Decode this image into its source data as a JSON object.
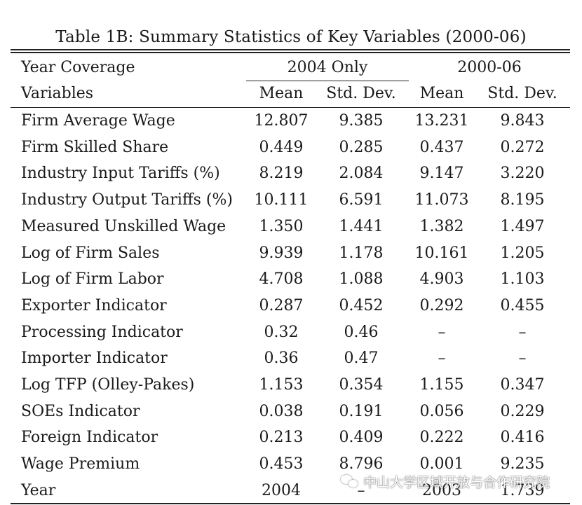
{
  "caption": "Table 1B: Summary Statistics of Key Variables (2000-06)",
  "header": {
    "row1_label": "Year Coverage",
    "group1": "2004 Only",
    "group2": "2000-06",
    "row2_label": "Variables",
    "col_mean_1": "Mean",
    "col_sd_1": "Std. Dev.",
    "col_mean_2": "Mean",
    "col_sd_2": "Std. Dev."
  },
  "rows": [
    {
      "variable": "Firm Average Wage",
      "m1": "12.807",
      "s1": "9.385",
      "m2": "13.231",
      "s2": "9.843"
    },
    {
      "variable": "Firm Skilled Share",
      "m1": "0.449",
      "s1": "0.285",
      "m2": "0.437",
      "s2": "0.272"
    },
    {
      "variable": "Industry Input Tariffs (%)",
      "m1": "8.219",
      "s1": "2.084",
      "m2": "9.147",
      "s2": "3.220"
    },
    {
      "variable": "Industry Output Tariffs (%)",
      "m1": "10.111",
      "s1": "6.591",
      "m2": "11.073",
      "s2": "8.195"
    },
    {
      "variable": "Measured Unskilled Wage",
      "m1": "1.350",
      "s1": "1.441",
      "m2": "1.382",
      "s2": "1.497"
    },
    {
      "variable": "Log of Firm Sales",
      "m1": "9.939",
      "s1": "1.178",
      "m2": "10.161",
      "s2": "1.205"
    },
    {
      "variable": "Log of Firm Labor",
      "m1": "4.708",
      "s1": "1.088",
      "m2": "4.903",
      "s2": "1.103"
    },
    {
      "variable": "Exporter Indicator",
      "m1": "0.287",
      "s1": "0.452",
      "m2": "0.292",
      "s2": "0.455"
    },
    {
      "variable": "Processing Indicator",
      "m1": "0.32",
      "s1": "0.46",
      "m2": "–",
      "s2": "–"
    },
    {
      "variable": "Importer Indicator",
      "m1": "0.36",
      "s1": "0.47",
      "m2": "–",
      "s2": "–"
    },
    {
      "variable": "Log TFP (Olley-Pakes)",
      "m1": "1.153",
      "s1": "0.354",
      "m2": "1.155",
      "s2": "0.347"
    },
    {
      "variable": "SOEs Indicator",
      "m1": "0.038",
      "s1": "0.191",
      "m2": "0.056",
      "s2": "0.229"
    },
    {
      "variable": "Foreign Indicator",
      "m1": "0.213",
      "s1": "0.409",
      "m2": "0.222",
      "s2": "0.416"
    },
    {
      "variable": "Wage Premium",
      "m1": "0.453",
      "s1": "8.796",
      "m2": "0.001",
      "s2": "9.235"
    },
    {
      "variable": "Year",
      "m1": "2004",
      "s1": "–",
      "m2": "2003",
      "s2": "1.739"
    }
  ],
  "watermark": {
    "icon": "wechat-icon",
    "text": "中山大学区域开放与合作研究院"
  }
}
